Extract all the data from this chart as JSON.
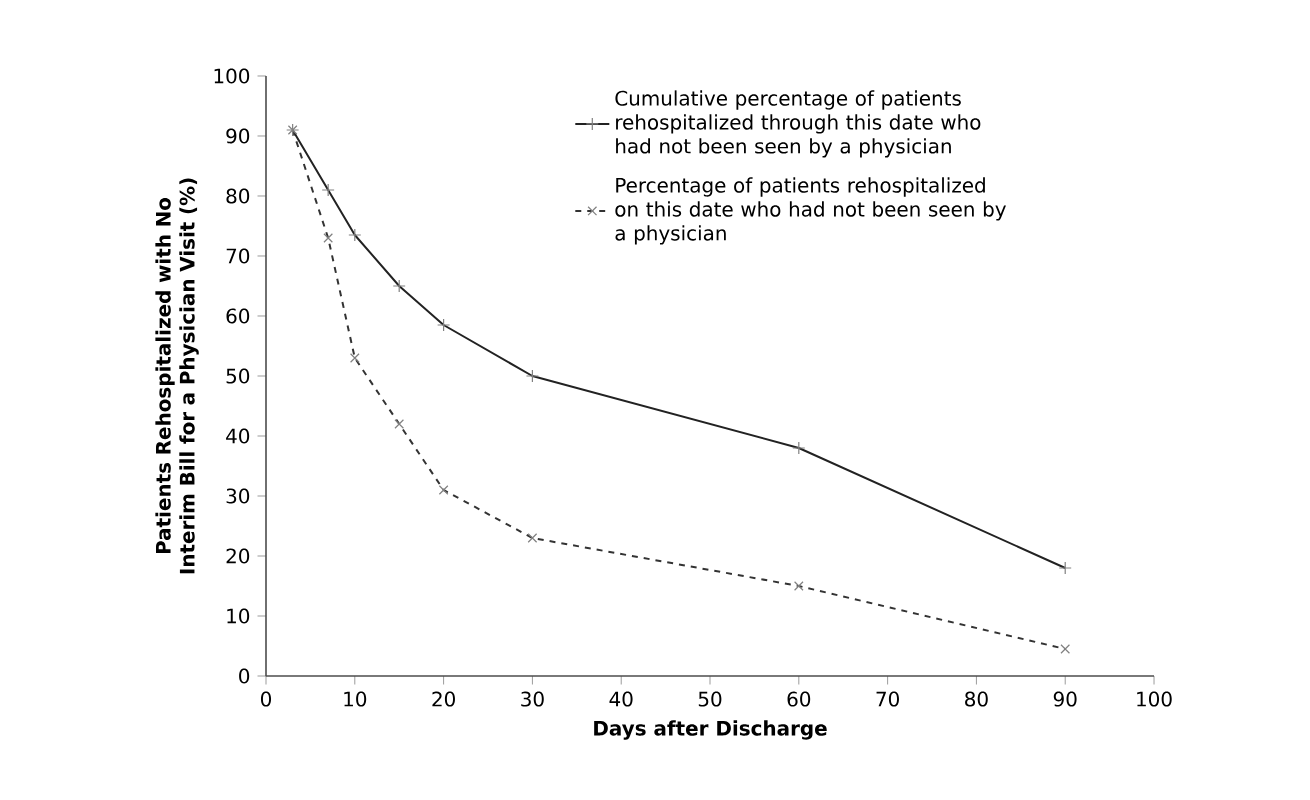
{
  "chart_data": {
    "type": "line",
    "xlabel": "Days after Discharge",
    "ylabel": "Patients Rehospitalized with No Interim Bill for a Physician Visit (%)",
    "x": [
      3,
      7,
      10,
      15,
      20,
      30,
      60,
      90
    ],
    "series": [
      {
        "name": "Cumulative percentage of patients rehospitalized through this date who had not been seen by a physician",
        "color": "#222222",
        "values": [
          91,
          81,
          73.5,
          65,
          58.5,
          50,
          38,
          18
        ],
        "marker": "plus",
        "line_style": "solid"
      },
      {
        "name": "Percentage of patients rehospitalized on this date who had not been seen by a physician",
        "color": "#333333",
        "values": [
          91,
          73,
          53,
          42,
          31,
          23,
          15,
          4.5
        ],
        "marker": "cross",
        "line_style": "dashed"
      }
    ],
    "xlim": [
      0,
      100
    ],
    "ylim": [
      0,
      100
    ],
    "xticks": [
      0,
      10,
      20,
      30,
      40,
      50,
      60,
      70,
      80,
      90,
      100
    ],
    "yticks": [
      0,
      10,
      20,
      30,
      40,
      50,
      60,
      70,
      80,
      90,
      100
    ],
    "grid": false,
    "legend": "top right"
  }
}
